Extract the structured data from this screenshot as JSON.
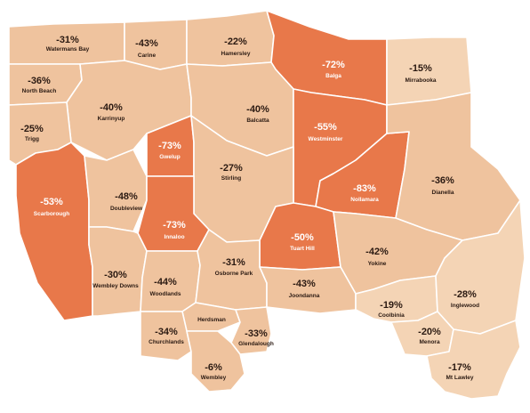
{
  "colors": {
    "light": "#efc39e",
    "lighter": "#f4d4b5",
    "highlight": "#e8784a",
    "border": "#ffffff",
    "dark_text": "#2b1a12",
    "light_text": "#ffffff"
  },
  "suburbs": [
    {
      "id": "watermans-bay",
      "name": "Watermans Bay",
      "pct": "-31%",
      "highlight": false
    },
    {
      "id": "carine",
      "name": "Carine",
      "pct": "-43%",
      "highlight": false
    },
    {
      "id": "hamersley",
      "name": "Hamersley",
      "pct": "-22%",
      "highlight": false
    },
    {
      "id": "balga",
      "name": "Balga",
      "pct": "-72%",
      "highlight": true
    },
    {
      "id": "mirrabooka",
      "name": "Mirrabooka",
      "pct": "-15%",
      "highlight": false
    },
    {
      "id": "north-beach",
      "name": "North Beach",
      "pct": "-36%",
      "highlight": false
    },
    {
      "id": "karrinyup",
      "name": "Karrinyup",
      "pct": "-40%",
      "highlight": false
    },
    {
      "id": "balcatta",
      "name": "Balcatta",
      "pct": "-40%",
      "highlight": false
    },
    {
      "id": "westminster",
      "name": "Westminster",
      "pct": "-55%",
      "highlight": true
    },
    {
      "id": "trigg",
      "name": "Trigg",
      "pct": "-25%",
      "highlight": false
    },
    {
      "id": "gwelup",
      "name": "Gwelup",
      "pct": "-73%",
      "highlight": true
    },
    {
      "id": "stirling",
      "name": "Stirling",
      "pct": "-27%",
      "highlight": false
    },
    {
      "id": "nollamara",
      "name": "Nollamara",
      "pct": "-83%",
      "highlight": true
    },
    {
      "id": "dianella",
      "name": "Dianella",
      "pct": "-36%",
      "highlight": false
    },
    {
      "id": "scarborough",
      "name": "Scarborough",
      "pct": "-53%",
      "highlight": true
    },
    {
      "id": "doubleview",
      "name": "Doubleview",
      "pct": "-48%",
      "highlight": false
    },
    {
      "id": "innaloo",
      "name": "Innaloo",
      "pct": "-73%",
      "highlight": true
    },
    {
      "id": "tuart-hill",
      "name": "Tuart Hill",
      "pct": "-50%",
      "highlight": true
    },
    {
      "id": "yokine",
      "name": "Yokine",
      "pct": "-42%",
      "highlight": false
    },
    {
      "id": "wembley-downs",
      "name": "Wembley Downs",
      "pct": "-30%",
      "highlight": false
    },
    {
      "id": "woodlands",
      "name": "Woodlands",
      "pct": "-44%",
      "highlight": false
    },
    {
      "id": "osborne-park",
      "name": "Osborne Park",
      "pct": "-31%",
      "highlight": false
    },
    {
      "id": "joondanna",
      "name": "Joondanna",
      "pct": "-43%",
      "highlight": false
    },
    {
      "id": "coolbinia",
      "name": "Coolbinia",
      "pct": "-19%",
      "highlight": false
    },
    {
      "id": "inglewood",
      "name": "Inglewood",
      "pct": "-28%",
      "highlight": false
    },
    {
      "id": "herdsman",
      "name": "Herdsman",
      "pct": "",
      "highlight": false
    },
    {
      "id": "churchlands",
      "name": "Churchlands",
      "pct": "-34%",
      "highlight": false
    },
    {
      "id": "glendalough",
      "name": "Glendalough",
      "pct": "-33%",
      "highlight": false
    },
    {
      "id": "menora",
      "name": "Menora",
      "pct": "-20%",
      "highlight": false
    },
    {
      "id": "wembley",
      "name": "Wembley",
      "pct": "-6%",
      "highlight": false
    },
    {
      "id": "mt-lawley",
      "name": "Mt Lawley",
      "pct": "-17%",
      "highlight": false
    }
  ]
}
